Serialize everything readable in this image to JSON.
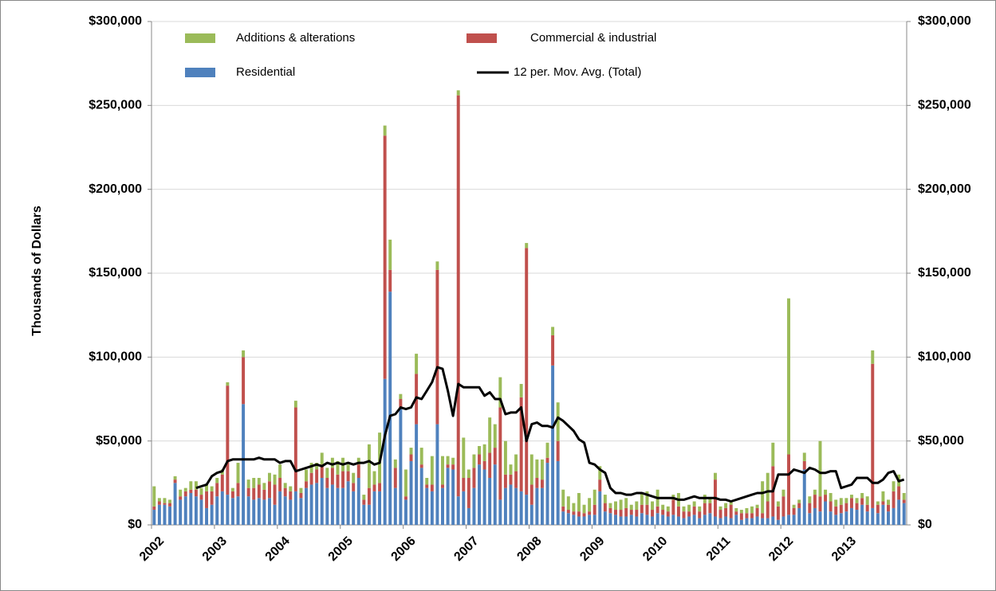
{
  "chart_data": {
    "type": "bar",
    "stacked": true,
    "y_label": "Thousands of Dollars",
    "categories": [
      "2002",
      null,
      null,
      null,
      null,
      null,
      null,
      null,
      null,
      null,
      null,
      null,
      "2003",
      null,
      null,
      null,
      null,
      null,
      null,
      null,
      null,
      null,
      null,
      null,
      "2004",
      null,
      null,
      null,
      null,
      null,
      null,
      null,
      null,
      null,
      null,
      null,
      "2005",
      null,
      null,
      null,
      null,
      null,
      null,
      null,
      null,
      null,
      null,
      null,
      "2006",
      null,
      null,
      null,
      null,
      null,
      null,
      null,
      null,
      null,
      null,
      null,
      "2007",
      null,
      null,
      null,
      null,
      null,
      null,
      null,
      null,
      null,
      null,
      null,
      "2008",
      null,
      null,
      null,
      null,
      null,
      null,
      null,
      null,
      null,
      null,
      null,
      "2009",
      null,
      null,
      null,
      null,
      null,
      null,
      null,
      null,
      null,
      null,
      null,
      "2010",
      null,
      null,
      null,
      null,
      null,
      null,
      null,
      null,
      null,
      null,
      null,
      "2011",
      null,
      null,
      null,
      null,
      null,
      null,
      null,
      null,
      null,
      null,
      null,
      "2012",
      null,
      null,
      null,
      null,
      null,
      null,
      null,
      null,
      null,
      null,
      null,
      "2013",
      null,
      null,
      null,
      null,
      null,
      null,
      null,
      null,
      null,
      null,
      null
    ],
    "series": [
      {
        "name": "Residential",
        "color": "#4f81bd",
        "type": "bar",
        "values": [
          9000,
          12000,
          12000,
          11000,
          25000,
          15000,
          17000,
          19000,
          17000,
          15000,
          10000,
          12000,
          17000,
          20000,
          18000,
          16000,
          17000,
          72000,
          17000,
          15000,
          16000,
          15000,
          16000,
          12000,
          20000,
          17000,
          15000,
          20000,
          16000,
          22000,
          24000,
          25000,
          28000,
          22000,
          24000,
          22000,
          22000,
          26000,
          20000,
          28000,
          12000,
          12000,
          20000,
          20000,
          87000,
          139000,
          22000,
          70000,
          15000,
          38000,
          60000,
          34000,
          22000,
          20000,
          60000,
          22000,
          34000,
          33000,
          17000,
          20000,
          10000,
          22000,
          36000,
          33000,
          28000,
          36000,
          15000,
          22000,
          24000,
          22000,
          20000,
          18000,
          12000,
          22000,
          22000,
          37000,
          95000,
          38000,
          8000,
          7000,
          6000,
          5000,
          5000,
          6000,
          6000,
          20000,
          8000,
          7000,
          6000,
          5000,
          5000,
          6000,
          5000,
          7000,
          6000,
          5000,
          7000,
          6000,
          5000,
          6000,
          5000,
          4000,
          5000,
          6000,
          4000,
          6000,
          7000,
          5000,
          4000,
          5000,
          4000,
          6000,
          3000,
          4000,
          4000,
          5000,
          4000,
          4000,
          5000,
          3000,
          5000,
          6000,
          6000,
          10000,
          33000,
          7000,
          10000,
          8000,
          14000,
          8000,
          6000,
          7000,
          8000,
          10000,
          9000,
          12000,
          8000,
          10000,
          7000,
          12000,
          8000,
          10000,
          15000,
          13000
        ]
      },
      {
        "name": "Commercial & industrial",
        "color": "#c0504d",
        "type": "bar",
        "values": [
          2000,
          2000,
          1000,
          2000,
          2000,
          2000,
          3000,
          2000,
          4000,
          3000,
          10000,
          8000,
          8000,
          10000,
          65000,
          4000,
          8000,
          28000,
          5000,
          7000,
          8000,
          6000,
          10000,
          12000,
          8000,
          5000,
          5000,
          50000,
          3000,
          4000,
          7000,
          8000,
          8000,
          6000,
          10000,
          8000,
          10000,
          6000,
          5000,
          8000,
          3000,
          10000,
          4000,
          5000,
          145000,
          13000,
          12000,
          5000,
          2000,
          4000,
          30000,
          2000,
          2000,
          4000,
          92000,
          2000,
          2000,
          3000,
          239000,
          8000,
          18000,
          12000,
          6000,
          5000,
          15000,
          10000,
          55000,
          8000,
          6000,
          10000,
          56000,
          147000,
          12000,
          6000,
          5000,
          3000,
          18000,
          12000,
          3000,
          2000,
          2000,
          3000,
          2000,
          2000,
          6000,
          7000,
          5000,
          3000,
          3000,
          4000,
          5000,
          3000,
          4000,
          5000,
          6000,
          4000,
          4000,
          3000,
          3000,
          9000,
          6000,
          4000,
          3000,
          5000,
          4000,
          7000,
          6000,
          22000,
          5000,
          5000,
          8000,
          2000,
          4000,
          3000,
          3000,
          5000,
          3000,
          10000,
          30000,
          8000,
          12000,
          36000,
          4000,
          3000,
          5000,
          6000,
          8000,
          9000,
          4000,
          6000,
          5000,
          5000,
          5000,
          6000,
          4000,
          4000,
          4000,
          86000,
          5000,
          2000,
          4000,
          10000,
          8000,
          2000
        ]
      },
      {
        "name": "Additions & alterations",
        "color": "#9bbb59",
        "type": "bar",
        "values": [
          12000,
          2000,
          3000,
          2000,
          2000,
          4000,
          2000,
          5000,
          5000,
          4000,
          4000,
          3000,
          3000,
          3000,
          2000,
          2000,
          12000,
          4000,
          5000,
          6000,
          4000,
          4000,
          5000,
          6000,
          8000,
          3000,
          3000,
          4000,
          3000,
          7000,
          6000,
          4000,
          7000,
          6000,
          6000,
          8000,
          8000,
          4000,
          6000,
          4000,
          3000,
          26000,
          8000,
          30000,
          6000,
          18000,
          5000,
          3000,
          16000,
          4000,
          12000,
          10000,
          4000,
          17000,
          5000,
          17000,
          5000,
          4000,
          3000,
          24000,
          5000,
          8000,
          5000,
          10000,
          21000,
          14000,
          18000,
          20000,
          6000,
          10000,
          8000,
          3000,
          18000,
          11000,
          12000,
          9000,
          5000,
          23000,
          10000,
          8000,
          5000,
          11000,
          5000,
          8000,
          9000,
          8000,
          5000,
          3000,
          5000,
          6000,
          6000,
          3000,
          5000,
          7000,
          8000,
          5000,
          10000,
          3000,
          3000,
          3000,
          8000,
          3000,
          4000,
          3000,
          3000,
          5000,
          3000,
          4000,
          2000,
          3000,
          2000,
          2000,
          2000,
          3000,
          4000,
          2000,
          19000,
          17000,
          14000,
          3000,
          4000,
          93000,
          2000,
          2000,
          5000,
          4000,
          3000,
          33000,
          3000,
          5000,
          4000,
          4000,
          3000,
          2000,
          3000,
          3000,
          5000,
          8000,
          2000,
          6000,
          3000,
          6000,
          7000,
          4000
        ]
      },
      {
        "name": "12 per. Mov. Avg. (Total)",
        "color": "#000000",
        "type": "line",
        "values": [
          null,
          null,
          null,
          null,
          null,
          null,
          null,
          null,
          22000,
          23000,
          24000,
          29000,
          31000,
          32000,
          38000,
          39000,
          39000,
          39000,
          39000,
          39000,
          40000,
          39000,
          39000,
          39000,
          37000,
          38000,
          38000,
          32000,
          33000,
          34000,
          35000,
          36000,
          35000,
          37000,
          36000,
          37000,
          36000,
          37000,
          36000,
          37000,
          37000,
          38000,
          36000,
          37000,
          53000,
          65000,
          66000,
          70000,
          69000,
          70000,
          76000,
          75000,
          80000,
          85000,
          94000,
          93000,
          80000,
          65000,
          84000,
          82000,
          82000,
          82000,
          82000,
          77000,
          79000,
          75000,
          75000,
          66000,
          67000,
          67000,
          70000,
          50000,
          60000,
          61000,
          59000,
          59000,
          58000,
          64000,
          62000,
          59000,
          56000,
          51000,
          49000,
          37000,
          36000,
          33000,
          31000,
          22000,
          19000,
          19000,
          18000,
          18000,
          19000,
          19000,
          18000,
          17000,
          16000,
          16000,
          16000,
          16000,
          15000,
          15000,
          16000,
          17000,
          16000,
          16000,
          16000,
          16000,
          15000,
          15000,
          14000,
          15000,
          16000,
          17000,
          18000,
          19000,
          19000,
          20000,
          20000,
          30000,
          30000,
          30000,
          33000,
          32000,
          31000,
          34000,
          33000,
          31000,
          31000,
          32000,
          32000,
          22000,
          23000,
          24000,
          28000,
          28000,
          28000,
          25000,
          25000,
          27000,
          31000,
          32000,
          26000,
          27000
        ]
      }
    ],
    "ylim": [
      0,
      300000
    ],
    "yticks": [
      {
        "value": 0,
        "label": "$0"
      },
      {
        "value": 50000,
        "label": "$50,000"
      },
      {
        "value": 100000,
        "label": "$100,000"
      },
      {
        "value": 150000,
        "label": "$150,000"
      },
      {
        "value": 200000,
        "label": "$200,000"
      },
      {
        "value": 250000,
        "label": "$250,000"
      },
      {
        "value": 300000,
        "label": "$300,000"
      }
    ],
    "y2lim": [
      0,
      300000
    ],
    "y2ticks": [
      {
        "value": 0,
        "label": "$0"
      },
      {
        "value": 50000,
        "label": "$50,000"
      },
      {
        "value": 100000,
        "label": "$100,000"
      },
      {
        "value": 150000,
        "label": "$150,000"
      },
      {
        "value": 200000,
        "label": "$200,000"
      },
      {
        "value": 250000,
        "label": "$250,000"
      },
      {
        "value": 300000,
        "label": "$300,000"
      }
    ],
    "grid": true
  }
}
